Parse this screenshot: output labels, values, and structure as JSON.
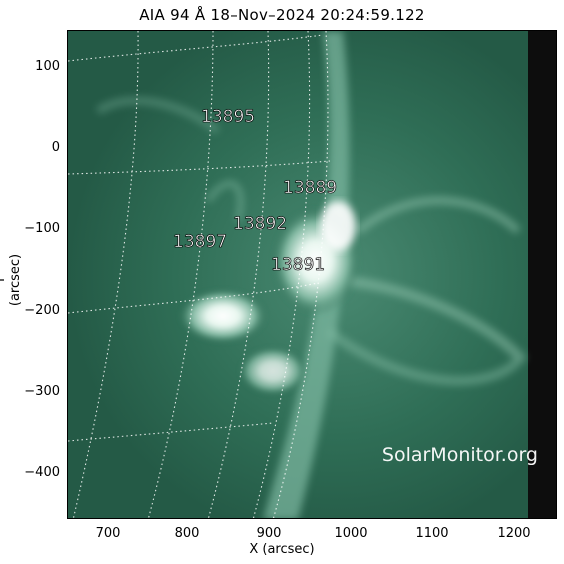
{
  "title": "AIA 94 Å 18–Nov–2024 20:24:59.122",
  "axes": {
    "x_label": "X (arcsec)",
    "y_label": "Y (arcsec)",
    "x_ticks": [
      "700",
      "800",
      "900",
      "1000",
      "1100",
      "1200"
    ],
    "y_ticks": [
      "100",
      "0",
      "−100",
      "−200",
      "−300",
      "−400"
    ]
  },
  "regions": [
    "13895",
    "13889",
    "13892",
    "13897",
    "13891"
  ],
  "watermark": "SolarMonitor.org",
  "colors": {
    "disk": "#2f6e56",
    "bright": "#eaf7f1",
    "offlimb": "#0d0d0d",
    "grid": "#ffffff"
  }
}
